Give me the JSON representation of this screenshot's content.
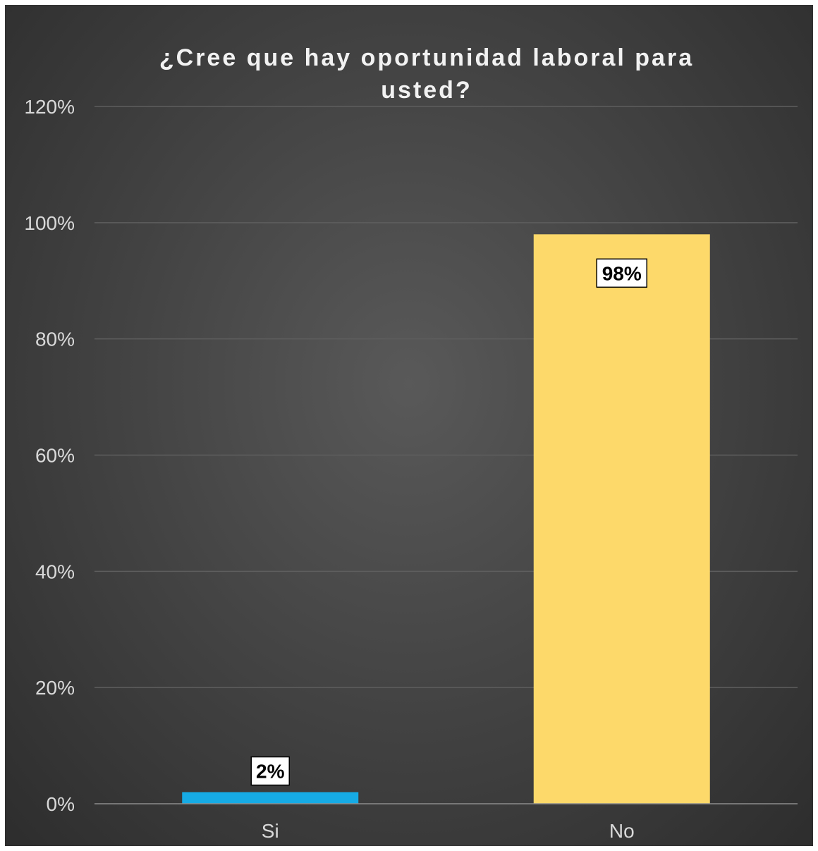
{
  "chart_data": {
    "type": "bar",
    "title": "¿Cree que hay oportunidad laboral para usted?",
    "categories": [
      "Si",
      "No"
    ],
    "values": [
      2,
      98
    ],
    "data_labels": [
      "2%",
      "98%"
    ],
    "bar_colors": [
      "#16ABE5",
      "#FDD96A"
    ],
    "ylim": [
      0,
      120
    ],
    "y_ticks": [
      0,
      20,
      40,
      60,
      80,
      100,
      120
    ],
    "y_tick_labels": [
      "0%",
      "20%",
      "40%",
      "60%",
      "80%",
      "100%",
      "120%"
    ],
    "grid": true,
    "legend": "none",
    "background": "#404040",
    "text_color": "#D9D9D9"
  }
}
